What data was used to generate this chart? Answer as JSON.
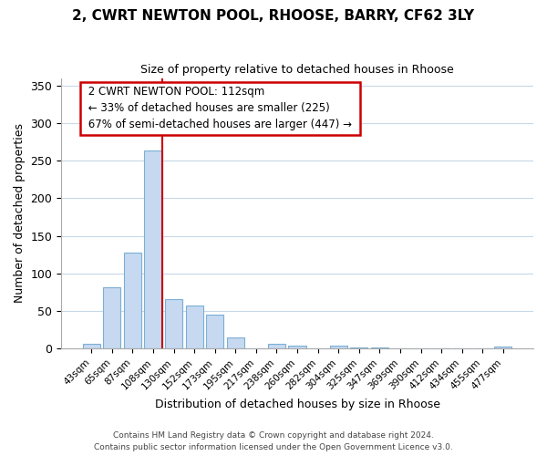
{
  "title": "2, CWRT NEWTON POOL, RHOOSE, BARRY, CF62 3LY",
  "subtitle": "Size of property relative to detached houses in Rhoose",
  "xlabel": "Distribution of detached houses by size in Rhoose",
  "ylabel": "Number of detached properties",
  "bar_labels": [
    "43sqm",
    "65sqm",
    "87sqm",
    "108sqm",
    "130sqm",
    "152sqm",
    "173sqm",
    "195sqm",
    "217sqm",
    "238sqm",
    "260sqm",
    "282sqm",
    "304sqm",
    "325sqm",
    "347sqm",
    "369sqm",
    "390sqm",
    "412sqm",
    "434sqm",
    "455sqm",
    "477sqm"
  ],
  "bar_values": [
    6,
    81,
    128,
    263,
    66,
    57,
    45,
    15,
    0,
    6,
    4,
    0,
    4,
    1,
    1,
    0,
    0,
    0,
    0,
    0,
    2
  ],
  "bar_color": "#c6d9f1",
  "bar_edge_color": "#7bafd4",
  "vline_bar_index": 3,
  "vline_color": "#cc0000",
  "annotation_title": "2 CWRT NEWTON POOL: 112sqm",
  "annotation_line1": "← 33% of detached houses are smaller (225)",
  "annotation_line2": "67% of semi-detached houses are larger (447) →",
  "ylim": [
    0,
    360
  ],
  "yticks": [
    0,
    50,
    100,
    150,
    200,
    250,
    300,
    350
  ],
  "footer1": "Contains HM Land Registry data © Crown copyright and database right 2024.",
  "footer2": "Contains public sector information licensed under the Open Government Licence v3.0.",
  "bg_color": "#ffffff",
  "grid_color": "#c8d8e8"
}
